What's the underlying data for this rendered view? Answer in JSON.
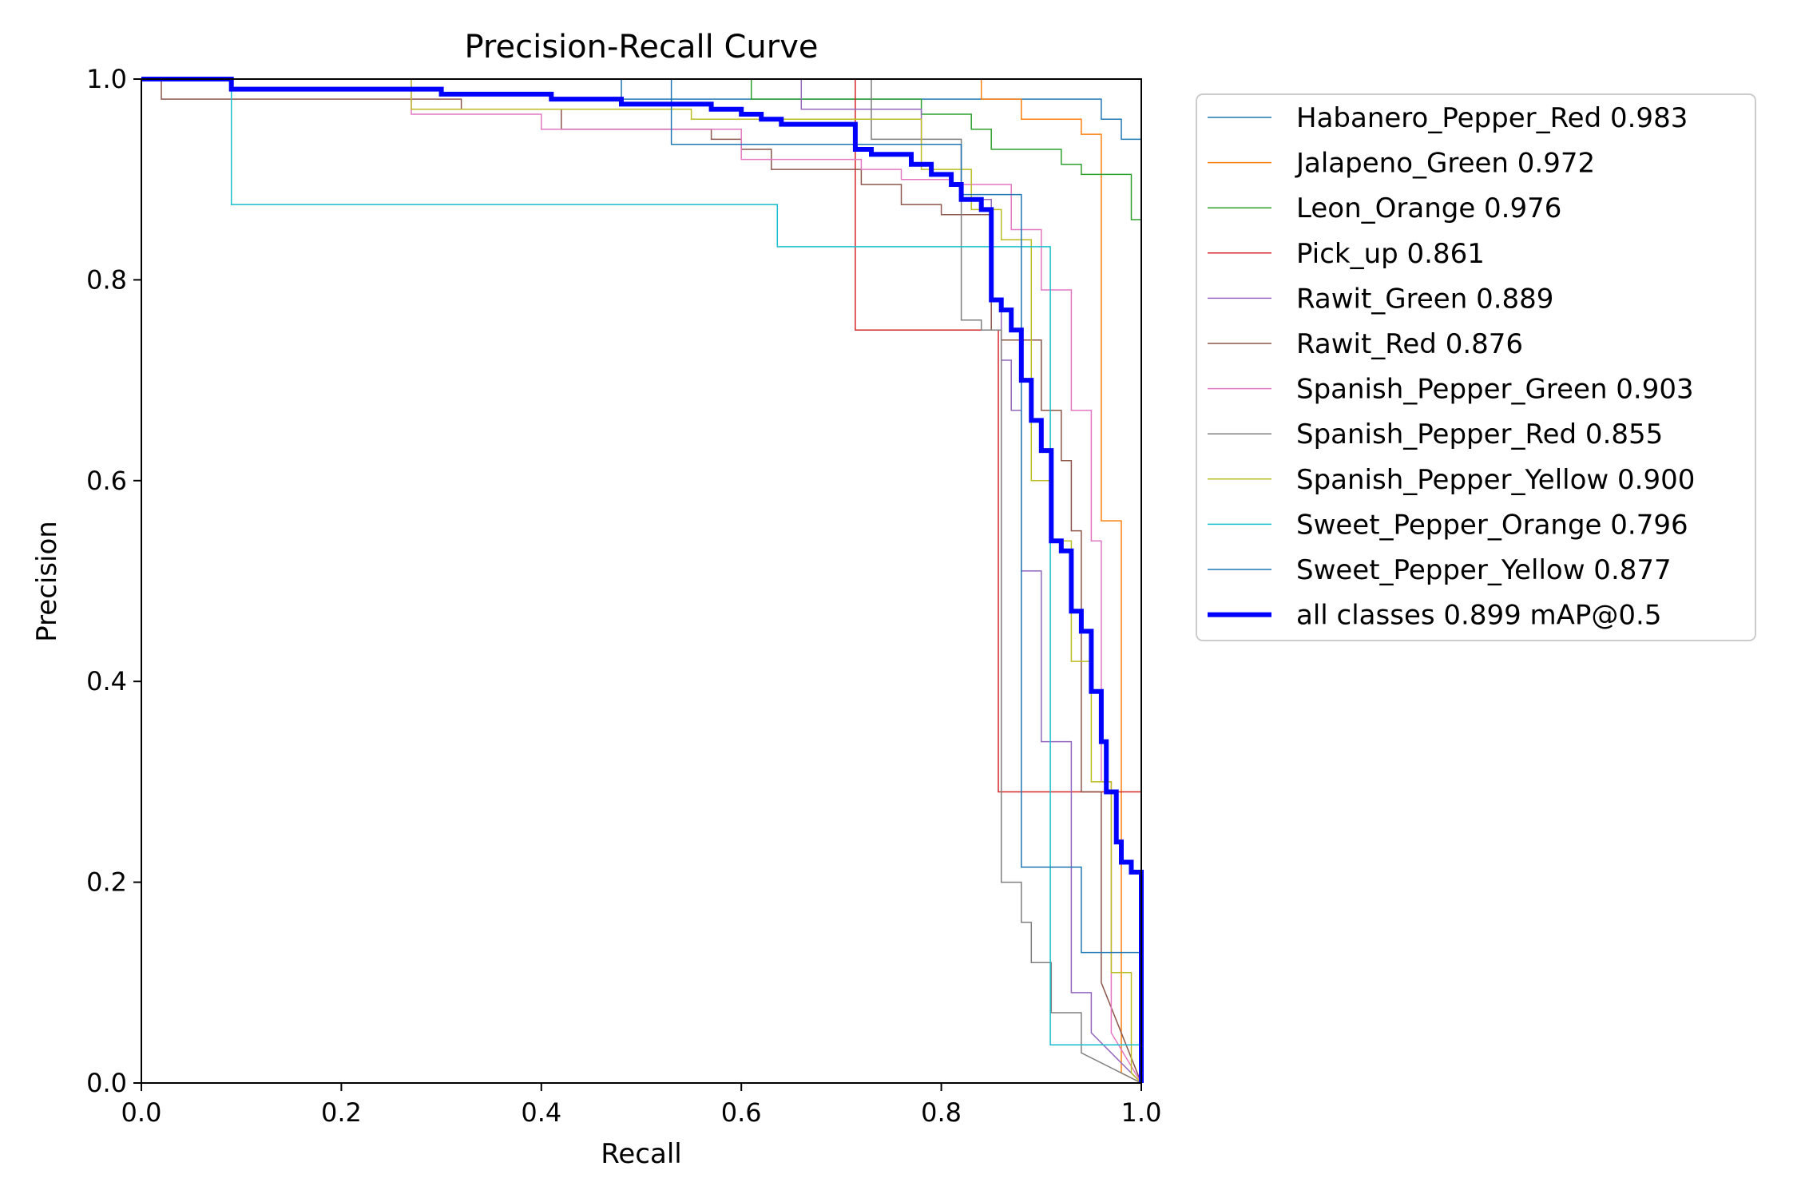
{
  "chart_data": {
    "type": "line",
    "title": "Precision-Recall Curve",
    "xlabel": "Recall",
    "ylabel": "Precision",
    "xlim": [
      0,
      1
    ],
    "ylim": [
      0,
      1
    ],
    "xticks": [
      "0.0",
      "0.2",
      "0.4",
      "0.6",
      "0.8",
      "1.0"
    ],
    "yticks": [
      "0.0",
      "0.2",
      "0.4",
      "0.6",
      "0.8",
      "1.0"
    ],
    "grid": false,
    "legend_position": "outside-right",
    "series": [
      {
        "name": "Habanero_Pepper_Red",
        "label": "Habanero_Pepper_Red 0.983",
        "color": "#1f77b4",
        "width": 1.5,
        "points": [
          [
            0,
            1
          ],
          [
            0.53,
            1
          ],
          [
            0.53,
            0.98
          ],
          [
            0.96,
            0.98
          ],
          [
            0.96,
            0.96
          ],
          [
            0.98,
            0.96
          ],
          [
            0.98,
            0.94
          ],
          [
            1,
            0.94
          ],
          [
            1,
            0
          ]
        ]
      },
      {
        "name": "Jalapeno_Green",
        "label": "Jalapeno_Green 0.972",
        "color": "#ff7f0e",
        "width": 1.5,
        "points": [
          [
            0,
            1
          ],
          [
            0.84,
            1
          ],
          [
            0.84,
            0.98
          ],
          [
            0.88,
            0.98
          ],
          [
            0.88,
            0.96
          ],
          [
            0.94,
            0.96
          ],
          [
            0.94,
            0.945
          ],
          [
            0.96,
            0.945
          ],
          [
            0.96,
            0.56
          ],
          [
            0.98,
            0.56
          ],
          [
            0.98,
            0.01
          ],
          [
            1,
            0
          ]
        ]
      },
      {
        "name": "Leon_Orange",
        "label": "Leon_Orange 0.976",
        "color": "#2ca02c",
        "width": 1.5,
        "points": [
          [
            0,
            1
          ],
          [
            0.61,
            1
          ],
          [
            0.61,
            0.98
          ],
          [
            0.78,
            0.98
          ],
          [
            0.78,
            0.965
          ],
          [
            0.83,
            0.965
          ],
          [
            0.83,
            0.95
          ],
          [
            0.85,
            0.95
          ],
          [
            0.85,
            0.93
          ],
          [
            0.92,
            0.93
          ],
          [
            0.92,
            0.915
          ],
          [
            0.94,
            0.915
          ],
          [
            0.94,
            0.905
          ],
          [
            0.99,
            0.905
          ],
          [
            0.99,
            0.86
          ],
          [
            1,
            0.86
          ],
          [
            1,
            0
          ]
        ]
      },
      {
        "name": "Pick_up",
        "label": "Pick_up 0.861",
        "color": "#d62728",
        "width": 1.5,
        "points": [
          [
            0,
            1
          ],
          [
            0.714,
            1
          ],
          [
            0.714,
            0.75
          ],
          [
            0.857,
            0.75
          ],
          [
            0.857,
            0.29
          ],
          [
            1,
            0.29
          ],
          [
            1,
            0
          ]
        ]
      },
      {
        "name": "Rawit_Green",
        "label": "Rawit_Green 0.889",
        "color": "#9467bd",
        "width": 1.5,
        "points": [
          [
            0,
            1
          ],
          [
            0.66,
            1
          ],
          [
            0.66,
            0.97
          ],
          [
            0.78,
            0.97
          ],
          [
            0.78,
            0.935
          ],
          [
            0.82,
            0.935
          ],
          [
            0.82,
            0.88
          ],
          [
            0.85,
            0.88
          ],
          [
            0.85,
            0.78
          ],
          [
            0.86,
            0.78
          ],
          [
            0.86,
            0.72
          ],
          [
            0.87,
            0.72
          ],
          [
            0.87,
            0.67
          ],
          [
            0.88,
            0.67
          ],
          [
            0.88,
            0.51
          ],
          [
            0.9,
            0.51
          ],
          [
            0.9,
            0.34
          ],
          [
            0.93,
            0.34
          ],
          [
            0.93,
            0.09
          ],
          [
            0.95,
            0.09
          ],
          [
            0.95,
            0.05
          ],
          [
            1,
            0
          ]
        ]
      },
      {
        "name": "Rawit_Red",
        "label": "Rawit_Red 0.876",
        "color": "#8c564b",
        "width": 1.5,
        "points": [
          [
            0,
            1
          ],
          [
            0.02,
            1
          ],
          [
            0.02,
            0.98
          ],
          [
            0.32,
            0.98
          ],
          [
            0.32,
            0.97
          ],
          [
            0.42,
            0.97
          ],
          [
            0.42,
            0.95
          ],
          [
            0.57,
            0.95
          ],
          [
            0.57,
            0.94
          ],
          [
            0.6,
            0.94
          ],
          [
            0.6,
            0.93
          ],
          [
            0.63,
            0.93
          ],
          [
            0.63,
            0.91
          ],
          [
            0.72,
            0.91
          ],
          [
            0.72,
            0.895
          ],
          [
            0.76,
            0.895
          ],
          [
            0.76,
            0.875
          ],
          [
            0.8,
            0.875
          ],
          [
            0.8,
            0.865
          ],
          [
            0.85,
            0.865
          ],
          [
            0.85,
            0.75
          ],
          [
            0.86,
            0.75
          ],
          [
            0.86,
            0.74
          ],
          [
            0.9,
            0.74
          ],
          [
            0.9,
            0.67
          ],
          [
            0.92,
            0.67
          ],
          [
            0.92,
            0.62
          ],
          [
            0.93,
            0.62
          ],
          [
            0.93,
            0.55
          ],
          [
            0.94,
            0.55
          ],
          [
            0.94,
            0.29
          ],
          [
            0.96,
            0.29
          ],
          [
            0.96,
            0.1
          ],
          [
            1,
            0
          ]
        ]
      },
      {
        "name": "Spanish_Pepper_Green",
        "label": "Spanish_Pepper_Green 0.903",
        "color": "#e377c2",
        "width": 1.5,
        "points": [
          [
            0,
            1
          ],
          [
            0.27,
            1
          ],
          [
            0.27,
            0.965
          ],
          [
            0.4,
            0.965
          ],
          [
            0.4,
            0.95
          ],
          [
            0.6,
            0.95
          ],
          [
            0.6,
            0.92
          ],
          [
            0.72,
            0.92
          ],
          [
            0.72,
            0.91
          ],
          [
            0.76,
            0.91
          ],
          [
            0.76,
            0.9
          ],
          [
            0.81,
            0.9
          ],
          [
            0.81,
            0.895
          ],
          [
            0.87,
            0.895
          ],
          [
            0.87,
            0.85
          ],
          [
            0.9,
            0.85
          ],
          [
            0.9,
            0.79
          ],
          [
            0.93,
            0.79
          ],
          [
            0.93,
            0.67
          ],
          [
            0.95,
            0.67
          ],
          [
            0.95,
            0.54
          ],
          [
            0.96,
            0.54
          ],
          [
            0.96,
            0.3
          ],
          [
            0.97,
            0.3
          ],
          [
            0.97,
            0.05
          ],
          [
            1,
            0
          ]
        ]
      },
      {
        "name": "Spanish_Pepper_Red",
        "label": "Spanish_Pepper_Red 0.855",
        "color": "#7f7f7f",
        "width": 1.5,
        "points": [
          [
            0,
            1
          ],
          [
            0.73,
            1
          ],
          [
            0.73,
            0.94
          ],
          [
            0.82,
            0.94
          ],
          [
            0.82,
            0.9
          ],
          [
            0.82,
            0.76
          ],
          [
            0.84,
            0.76
          ],
          [
            0.84,
            0.75
          ],
          [
            0.86,
            0.75
          ],
          [
            0.86,
            0.2
          ],
          [
            0.88,
            0.2
          ],
          [
            0.88,
            0.16
          ],
          [
            0.89,
            0.16
          ],
          [
            0.89,
            0.12
          ],
          [
            0.91,
            0.12
          ],
          [
            0.91,
            0.07
          ],
          [
            0.94,
            0.07
          ],
          [
            0.94,
            0.03
          ],
          [
            1,
            0
          ]
        ]
      },
      {
        "name": "Spanish_Pepper_Yellow",
        "label": "Spanish_Pepper_Yellow 0.900",
        "color": "#bcbd22",
        "width": 1.5,
        "points": [
          [
            0,
            1
          ],
          [
            0.27,
            1
          ],
          [
            0.27,
            0.97
          ],
          [
            0.55,
            0.97
          ],
          [
            0.55,
            0.96
          ],
          [
            0.78,
            0.96
          ],
          [
            0.78,
            0.91
          ],
          [
            0.83,
            0.91
          ],
          [
            0.83,
            0.87
          ],
          [
            0.86,
            0.87
          ],
          [
            0.86,
            0.84
          ],
          [
            0.89,
            0.84
          ],
          [
            0.89,
            0.6
          ],
          [
            0.91,
            0.6
          ],
          [
            0.91,
            0.54
          ],
          [
            0.93,
            0.54
          ],
          [
            0.93,
            0.42
          ],
          [
            0.95,
            0.42
          ],
          [
            0.95,
            0.3
          ],
          [
            0.97,
            0.3
          ],
          [
            0.97,
            0.11
          ],
          [
            0.99,
            0.11
          ],
          [
            0.99,
            0.01
          ],
          [
            1,
            0
          ]
        ]
      },
      {
        "name": "Sweet_Pepper_Orange",
        "label": "Sweet_Pepper_Orange 0.796",
        "color": "#17becf",
        "width": 1.5,
        "points": [
          [
            0,
            1
          ],
          [
            0.09,
            1
          ],
          [
            0.09,
            0.875
          ],
          [
            0.636,
            0.875
          ],
          [
            0.636,
            0.833
          ],
          [
            0.909,
            0.833
          ],
          [
            0.909,
            0.038
          ],
          [
            1,
            0.038
          ],
          [
            1,
            0
          ]
        ]
      },
      {
        "name": "Sweet_Pepper_Yellow",
        "label": "Sweet_Pepper_Yellow 0.877",
        "color": "#1f77b4",
        "width": 1.5,
        "points": [
          [
            0,
            1
          ],
          [
            0.48,
            1
          ],
          [
            0.48,
            0.98
          ],
          [
            0.53,
            0.98
          ],
          [
            0.53,
            0.935
          ],
          [
            0.82,
            0.935
          ],
          [
            0.82,
            0.885
          ],
          [
            0.88,
            0.885
          ],
          [
            0.88,
            0.215
          ],
          [
            0.94,
            0.215
          ],
          [
            0.94,
            0.13
          ],
          [
            1,
            0.13
          ],
          [
            1,
            0
          ]
        ]
      },
      {
        "name": "all classes",
        "label": "all classes 0.899 mAP@0.5",
        "color": "#0000ff",
        "width": 6,
        "points": [
          [
            0,
            1
          ],
          [
            0.09,
            1
          ],
          [
            0.09,
            0.99
          ],
          [
            0.3,
            0.99
          ],
          [
            0.3,
            0.985
          ],
          [
            0.41,
            0.985
          ],
          [
            0.41,
            0.98
          ],
          [
            0.48,
            0.98
          ],
          [
            0.48,
            0.975
          ],
          [
            0.57,
            0.975
          ],
          [
            0.57,
            0.97
          ],
          [
            0.6,
            0.97
          ],
          [
            0.6,
            0.965
          ],
          [
            0.62,
            0.965
          ],
          [
            0.62,
            0.96
          ],
          [
            0.64,
            0.96
          ],
          [
            0.64,
            0.955
          ],
          [
            0.714,
            0.955
          ],
          [
            0.714,
            0.93
          ],
          [
            0.73,
            0.93
          ],
          [
            0.73,
            0.925
          ],
          [
            0.77,
            0.925
          ],
          [
            0.77,
            0.915
          ],
          [
            0.79,
            0.915
          ],
          [
            0.79,
            0.905
          ],
          [
            0.81,
            0.905
          ],
          [
            0.81,
            0.895
          ],
          [
            0.82,
            0.895
          ],
          [
            0.82,
            0.88
          ],
          [
            0.84,
            0.88
          ],
          [
            0.84,
            0.87
          ],
          [
            0.85,
            0.87
          ],
          [
            0.85,
            0.78
          ],
          [
            0.86,
            0.78
          ],
          [
            0.86,
            0.77
          ],
          [
            0.87,
            0.77
          ],
          [
            0.87,
            0.75
          ],
          [
            0.88,
            0.75
          ],
          [
            0.88,
            0.7
          ],
          [
            0.89,
            0.7
          ],
          [
            0.89,
            0.66
          ],
          [
            0.9,
            0.66
          ],
          [
            0.9,
            0.63
          ],
          [
            0.91,
            0.63
          ],
          [
            0.91,
            0.54
          ],
          [
            0.92,
            0.54
          ],
          [
            0.92,
            0.53
          ],
          [
            0.93,
            0.53
          ],
          [
            0.93,
            0.47
          ],
          [
            0.94,
            0.47
          ],
          [
            0.94,
            0.45
          ],
          [
            0.95,
            0.45
          ],
          [
            0.95,
            0.39
          ],
          [
            0.96,
            0.39
          ],
          [
            0.96,
            0.34
          ],
          [
            0.965,
            0.34
          ],
          [
            0.965,
            0.29
          ],
          [
            0.975,
            0.29
          ],
          [
            0.975,
            0.24
          ],
          [
            0.98,
            0.24
          ],
          [
            0.98,
            0.22
          ],
          [
            0.99,
            0.22
          ],
          [
            0.99,
            0.21
          ],
          [
            1,
            0.21
          ],
          [
            1,
            0
          ]
        ]
      }
    ]
  }
}
